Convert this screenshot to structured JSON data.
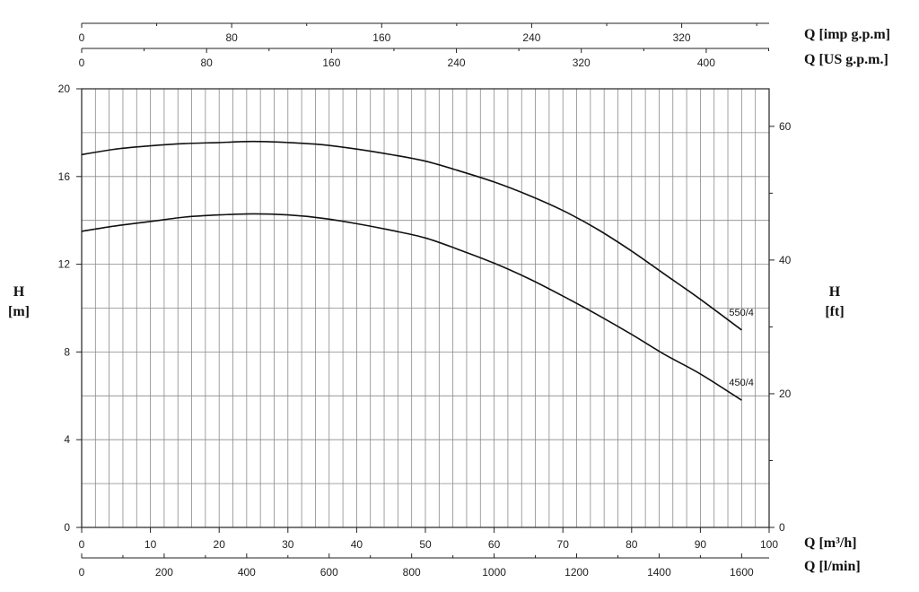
{
  "chart_data": {
    "type": "line",
    "title": "",
    "x": [
      0,
      5,
      10,
      15,
      20,
      25,
      30,
      35,
      40,
      45,
      50,
      55,
      60,
      65,
      70,
      75,
      80,
      85,
      90,
      96
    ],
    "series": [
      {
        "name": "550/4",
        "values": [
          17.0,
          17.25,
          17.4,
          17.5,
          17.55,
          17.6,
          17.55,
          17.45,
          17.25,
          17.0,
          16.7,
          16.25,
          15.75,
          15.15,
          14.45,
          13.6,
          12.6,
          11.5,
          10.4,
          9.0
        ]
      },
      {
        "name": "450/4",
        "values": [
          13.5,
          13.75,
          13.95,
          14.15,
          14.25,
          14.3,
          14.25,
          14.1,
          13.85,
          13.55,
          13.2,
          12.65,
          12.05,
          11.35,
          10.55,
          9.7,
          8.8,
          7.85,
          7.0,
          5.8
        ]
      }
    ],
    "xlim": [
      0,
      100
    ],
    "ylim": [
      0,
      20
    ],
    "grid": true,
    "axes": {
      "left": {
        "label_line1": "H",
        "label_line2": "[m]",
        "ticks": [
          "0",
          "4",
          "8",
          "12",
          "16",
          "20"
        ],
        "tick_values": [
          0,
          4,
          8,
          12,
          16,
          20
        ]
      },
      "right": {
        "label_line1": "H",
        "label_line2": "[ft]",
        "ticks": [
          "0",
          "20",
          "40",
          "60"
        ],
        "tick_values": [
          0,
          20,
          40,
          60
        ],
        "unit_per_m": 3.2808
      },
      "bottom_primary": {
        "label": "Q [m³/h]",
        "ticks": [
          "0",
          "10",
          "20",
          "30",
          "40",
          "50",
          "60",
          "70",
          "80",
          "90",
          "100"
        ],
        "tick_values": [
          0,
          10,
          20,
          30,
          40,
          50,
          60,
          70,
          80,
          90,
          100
        ]
      },
      "bottom_secondary": {
        "label": "Q [l/min]",
        "ticks": [
          "0",
          "200",
          "400",
          "600",
          "800",
          "1000",
          "1200",
          "1400",
          "1600"
        ],
        "tick_values": [
          0,
          200,
          400,
          600,
          800,
          1000,
          1200,
          1400,
          1600
        ],
        "per_m3h": 16.6667
      },
      "top_imp": {
        "label": "Q [imp g.p.m]",
        "ticks": [
          "0",
          "80",
          "160",
          "240",
          "320"
        ],
        "tick_values": [
          0,
          80,
          160,
          240,
          320
        ],
        "per_m3h": 3.6662
      },
      "top_us": {
        "label": "Q [US g.p.m.]",
        "ticks": [
          "0",
          "80",
          "160",
          "240",
          "320",
          "400"
        ],
        "tick_values": [
          0,
          80,
          160,
          240,
          320,
          400
        ],
        "per_m3h": 4.4029
      }
    }
  }
}
